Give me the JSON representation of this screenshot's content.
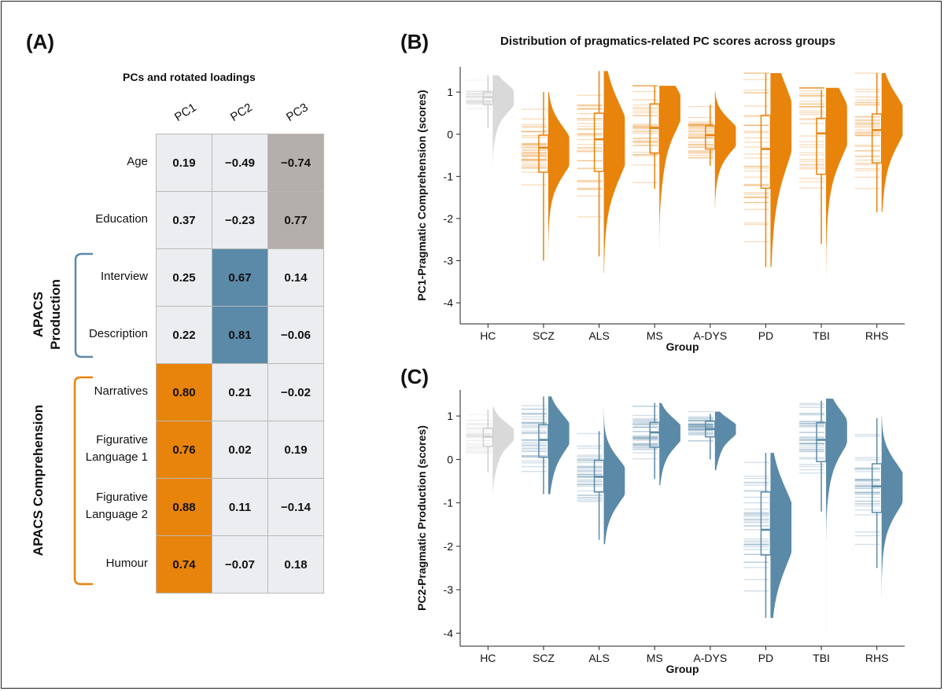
{
  "panels": {
    "A": "(A)",
    "B": "(B)",
    "C": "(C)"
  },
  "main_title": "Distribution of pragmatics-related PC scores across groups",
  "loadings": {
    "title": "PCs and rotated loadings",
    "columns": [
      "PC1",
      "PC2",
      "PC3"
    ],
    "rows": [
      {
        "label": "Age",
        "values": [
          "0.19",
          "−0.49",
          "−0.74"
        ],
        "highlight": [
          false,
          false,
          true
        ]
      },
      {
        "label": "Education",
        "values": [
          "0.37",
          "−0.23",
          "0.77"
        ],
        "highlight": [
          false,
          false,
          true
        ]
      },
      {
        "label": "Interview",
        "values": [
          "0.25",
          "0.67",
          "0.14"
        ],
        "highlight": [
          false,
          true,
          false
        ]
      },
      {
        "label": "Description",
        "values": [
          "0.22",
          "0.81",
          "−0.06"
        ],
        "highlight": [
          false,
          true,
          false
        ]
      },
      {
        "label": "Narratives",
        "values": [
          "0.80",
          "0.21",
          "−0.02"
        ],
        "highlight": [
          true,
          false,
          false
        ]
      },
      {
        "label": "Figurative Language 1",
        "values": [
          "0.76",
          "0.02",
          "0.19"
        ],
        "highlight": [
          true,
          false,
          false
        ]
      },
      {
        "label": "Figurative Language 2",
        "values": [
          "0.88",
          "0.11",
          "−0.14"
        ],
        "highlight": [
          true,
          false,
          false
        ]
      },
      {
        "label": "Humour",
        "values": [
          "0.74",
          "−0.07",
          "0.18"
        ],
        "highlight": [
          true,
          false,
          false
        ]
      }
    ],
    "group_production": "APACS Production",
    "group_comprehension": "APACS Comprehension"
  },
  "colors": {
    "orange": "#e8830b",
    "blue": "#5b8aa8",
    "grey": "#b5afab",
    "light": "#ebedf0",
    "hc": "#d9d9d9"
  },
  "chart_data": [
    {
      "type": "raincloud",
      "title": "Distribution of pragmatics-related PC scores across groups",
      "xlabel": "Group",
      "ylabel": "PC1-Pragmatic Comprehension (scores)",
      "ylim": [
        -4.5,
        1.6
      ],
      "yticks": [
        1,
        0,
        -1,
        -2,
        -3,
        -4
      ],
      "categories": [
        "HC",
        "SCZ",
        "ALS",
        "MS",
        "A-DYS",
        "PD",
        "TBI",
        "RHS"
      ],
      "groups": [
        {
          "name": "HC",
          "median": 0.88,
          "q1": 0.7,
          "q3": 1.0,
          "min": 0.15,
          "max": 1.4,
          "mode": 0.9,
          "lo": -1.85,
          "hi": 1.4,
          "spread": 0.3
        },
        {
          "name": "SCZ",
          "median": -0.32,
          "q1": -0.9,
          "q3": -0.02,
          "min": -3.0,
          "max": 1.0,
          "mode": -0.35,
          "lo": -3.0,
          "hi": 1.0,
          "spread": 0.5
        },
        {
          "name": "ALS",
          "median": -0.12,
          "q1": -0.88,
          "q3": 0.5,
          "min": -2.9,
          "max": 1.5,
          "mode": -0.1,
          "lo": -3.3,
          "hi": 1.5,
          "spread": 0.8
        },
        {
          "name": "MS",
          "median": 0.15,
          "q1": -0.45,
          "q3": 0.72,
          "min": -1.3,
          "max": 1.15,
          "mode": 0.7,
          "lo": -3.45,
          "hi": 1.15,
          "spread": 0.55
        },
        {
          "name": "A-DYS",
          "median": -0.02,
          "q1": -0.35,
          "q3": 0.2,
          "min": -0.75,
          "max": 0.7,
          "mode": 0.0,
          "lo": -1.75,
          "hi": 1.0,
          "spread": 0.35
        },
        {
          "name": "PD",
          "median": -0.35,
          "q1": -1.28,
          "q3": 0.45,
          "min": -3.15,
          "max": 1.45,
          "mode": 0.3,
          "lo": -3.15,
          "hi": 1.45,
          "spread": 0.9
        },
        {
          "name": "TBI",
          "median": 0.02,
          "q1": -0.95,
          "q3": 0.38,
          "min": -2.6,
          "max": 1.05,
          "mode": 0.3,
          "lo": -4.3,
          "hi": 1.1,
          "spread": 0.7
        },
        {
          "name": "RHS",
          "median": 0.1,
          "q1": -0.68,
          "q3": 0.48,
          "min": -1.85,
          "max": 1.45,
          "mode": 0.4,
          "lo": -1.85,
          "hi": 1.45,
          "spread": 0.55
        }
      ]
    },
    {
      "type": "raincloud",
      "xlabel": "Group",
      "ylabel": "PC2-Pragmatic Production (scores)",
      "ylim": [
        -4.3,
        1.6
      ],
      "yticks": [
        1,
        0,
        -1,
        -2,
        -3,
        -4
      ],
      "categories": [
        "HC",
        "SCZ",
        "ALS",
        "MS",
        "A-DYS",
        "PD",
        "TBI",
        "RHS"
      ],
      "groups": [
        {
          "name": "HC",
          "median": 0.52,
          "q1": 0.3,
          "q3": 0.72,
          "min": -0.3,
          "max": 1.15,
          "mode": 0.6,
          "lo": -0.95,
          "hi": 1.2,
          "spread": 0.25
        },
        {
          "name": "SCZ",
          "median": 0.45,
          "q1": 0.05,
          "q3": 0.8,
          "min": -0.8,
          "max": 1.45,
          "mode": 0.65,
          "lo": -0.8,
          "hi": 1.45,
          "spread": 0.4
        },
        {
          "name": "ALS",
          "median": -0.4,
          "q1": -0.75,
          "q3": -0.02,
          "min": -1.85,
          "max": 0.65,
          "mode": -0.45,
          "lo": -1.95,
          "hi": 1.2,
          "spread": 0.45
        },
        {
          "name": "MS",
          "median": 0.62,
          "q1": 0.28,
          "q3": 0.85,
          "min": -0.45,
          "max": 1.3,
          "mode": 0.65,
          "lo": -0.6,
          "hi": 1.3,
          "spread": 0.3
        },
        {
          "name": "A-DYS",
          "median": 0.7,
          "q1": 0.52,
          "q3": 0.88,
          "min": 0.0,
          "max": 1.05,
          "mode": 0.72,
          "lo": -0.25,
          "hi": 1.1,
          "spread": 0.22
        },
        {
          "name": "PD",
          "median": -1.62,
          "q1": -2.2,
          "q3": -0.75,
          "min": -3.65,
          "max": 0.15,
          "mode": -1.5,
          "lo": -3.65,
          "hi": 0.15,
          "spread": 0.8
        },
        {
          "name": "TBI",
          "median": 0.45,
          "q1": -0.05,
          "q3": 0.85,
          "min": -1.2,
          "max": 1.35,
          "mode": 0.7,
          "lo": -4.1,
          "hi": 1.4,
          "spread": 0.45
        },
        {
          "name": "RHS",
          "median": -0.62,
          "q1": -1.22,
          "q3": -0.1,
          "min": -2.5,
          "max": 0.95,
          "mode": -0.6,
          "lo": -3.35,
          "hi": 1.0,
          "spread": 0.5
        }
      ]
    }
  ]
}
